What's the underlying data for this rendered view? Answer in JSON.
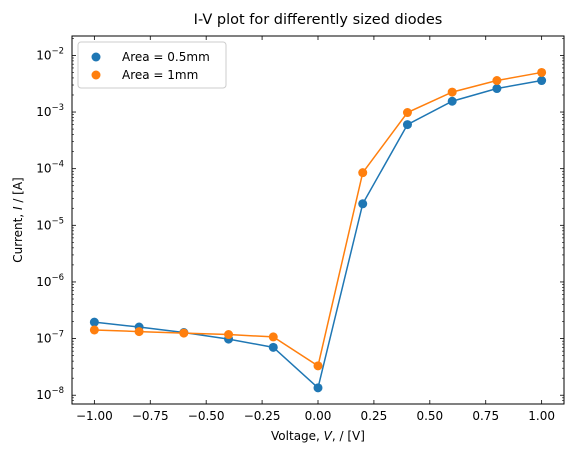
{
  "chart_data": {
    "type": "line",
    "title": "I-V plot for differently sized diodes",
    "xlabel_parts": [
      "Voltage, ",
      "V",
      ", / [V]"
    ],
    "ylabel_parts": [
      "Current, ",
      "I",
      " / [A]"
    ],
    "x": [
      -1.0,
      -0.8,
      -0.6,
      -0.4,
      -0.2,
      0.0,
      0.2,
      0.4,
      0.6,
      0.8,
      1.0
    ],
    "xlim": [
      -1.1,
      1.1
    ],
    "ylim": [
      7e-09,
      0.022
    ],
    "yscale": "log",
    "grid": false,
    "legend": "upper left",
    "x_ticks": [
      "−1.00",
      "−0.75",
      "−0.50",
      "−0.25",
      "0.00",
      "0.25",
      "0.50",
      "0.75",
      "1.00"
    ],
    "x_tick_values": [
      -1.0,
      -0.75,
      -0.5,
      -0.25,
      0.0,
      0.25,
      0.5,
      0.75,
      1.0
    ],
    "y_tick_exponents": [
      -8,
      -7,
      -6,
      -5,
      -4,
      -3,
      -2
    ],
    "series": [
      {
        "name": "Area = 0.5mm",
        "color": "#1f77b4",
        "values": [
          1.95e-07,
          1.6e-07,
          1.28e-07,
          9.8e-08,
          7e-08,
          1.35e-08,
          2.4e-05,
          0.0006,
          0.00155,
          0.0026,
          0.0036
        ]
      },
      {
        "name": "Area = 1mm",
        "color": "#ff7f0e",
        "values": [
          1.42e-07,
          1.33e-07,
          1.25e-07,
          1.18e-07,
          1.07e-07,
          3.3e-08,
          8.5e-05,
          0.00098,
          0.00225,
          0.0036,
          0.005
        ]
      }
    ]
  }
}
